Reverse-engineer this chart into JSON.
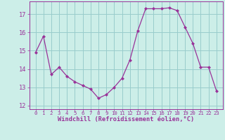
{
  "x": [
    0,
    1,
    2,
    3,
    4,
    5,
    6,
    7,
    8,
    9,
    10,
    11,
    12,
    13,
    14,
    15,
    16,
    17,
    18,
    19,
    20,
    21,
    22,
    23
  ],
  "y": [
    14.9,
    15.8,
    13.7,
    14.1,
    13.6,
    13.3,
    13.1,
    12.9,
    12.4,
    12.6,
    13.0,
    13.5,
    14.5,
    16.1,
    17.3,
    17.3,
    17.3,
    17.35,
    17.2,
    16.3,
    15.4,
    14.1,
    14.1,
    12.8
  ],
  "line_color": "#993399",
  "marker": "D",
  "marker_size": 2.0,
  "bg_color": "#cceee8",
  "grid_color": "#99cccc",
  "xlabel": "Windchill (Refroidissement éolien,°C)",
  "ylim": [
    11.8,
    17.7
  ],
  "yticks": [
    12,
    13,
    14,
    15,
    16,
    17
  ],
  "xticks": [
    0,
    1,
    2,
    3,
    4,
    5,
    6,
    7,
    8,
    9,
    10,
    11,
    12,
    13,
    14,
    15,
    16,
    17,
    18,
    19,
    20,
    21,
    22,
    23
  ],
  "font_color": "#993399"
}
